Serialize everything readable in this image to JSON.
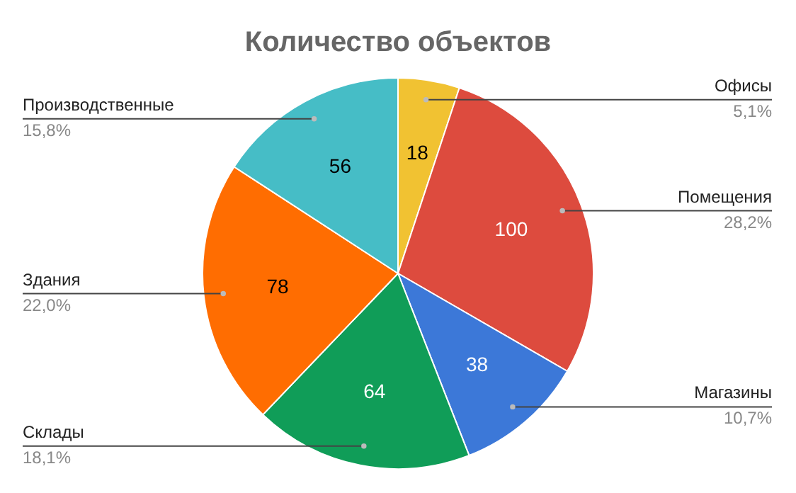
{
  "chart_data": {
    "type": "pie",
    "title": "Количество объектов",
    "categories": [
      "Офисы",
      "Помещения",
      "Магазины",
      "Склады",
      "Здания",
      "Производственные"
    ],
    "values": [
      18,
      100,
      38,
      64,
      78,
      56
    ],
    "colors": [
      "#f1c232",
      "#dd4b3e",
      "#3c78d8",
      "#109d58",
      "#ff6d01",
      "#46bdc6"
    ],
    "data_labels": true,
    "annotations": [
      {
        "text": "5,1%",
        "x": "Офисы"
      },
      {
        "text": "28,2%",
        "x": "Помещения"
      },
      {
        "text": "10,7%",
        "x": "Магазины"
      },
      {
        "text": "18,1%",
        "x": "Склады"
      },
      {
        "text": "22,0%",
        "x": "Здания"
      },
      {
        "text": "15,8%",
        "x": "Производственные"
      }
    ]
  }
}
